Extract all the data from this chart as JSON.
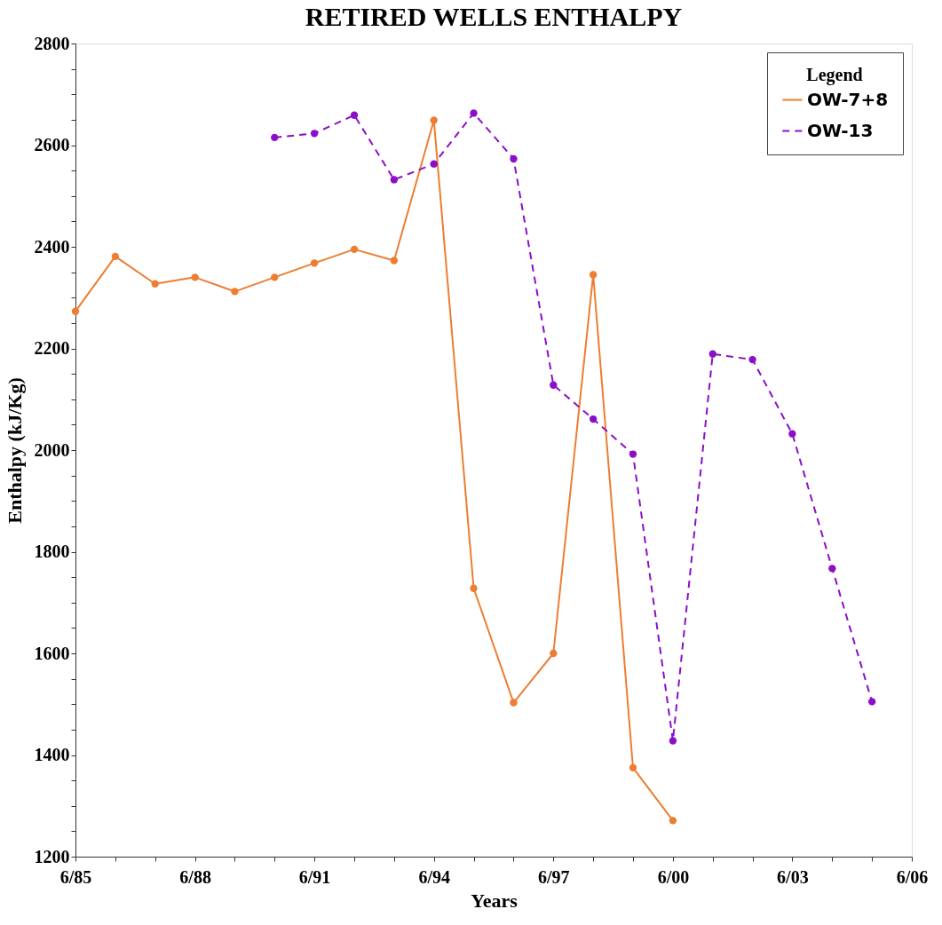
{
  "chart_data": {
    "type": "line",
    "title": "RETIRED WELLS ENTHALPY",
    "xlabel": "Years",
    "ylabel": "Enthalpy (kJ/Kg)",
    "legend_title": "Legend",
    "legend": "top right",
    "grid": false,
    "marker": "circle",
    "xlim": [
      "1985-06",
      "2006-06"
    ],
    "xticks": [
      {
        "value": "1985-06",
        "label": "6/85"
      },
      {
        "value": "1986-06",
        "label": null
      },
      {
        "value": "1987-06",
        "label": null
      },
      {
        "value": "1988-06",
        "label": "6/88"
      },
      {
        "value": "1989-06",
        "label": null
      },
      {
        "value": "1990-06",
        "label": null
      },
      {
        "value": "1991-06",
        "label": "6/91"
      },
      {
        "value": "1992-06",
        "label": null
      },
      {
        "value": "1993-06",
        "label": null
      },
      {
        "value": "1994-06",
        "label": "6/94"
      },
      {
        "value": "1995-06",
        "label": null
      },
      {
        "value": "1996-06",
        "label": null
      },
      {
        "value": "1997-06",
        "label": "6/97"
      },
      {
        "value": "1998-06",
        "label": null
      },
      {
        "value": "1999-06",
        "label": null
      },
      {
        "value": "2000-06",
        "label": "6/00"
      },
      {
        "value": "2001-06",
        "label": null
      },
      {
        "value": "2002-06",
        "label": null
      },
      {
        "value": "2003-06",
        "label": "6/03"
      },
      {
        "value": "2004-06",
        "label": null
      },
      {
        "value": "2005-06",
        "label": null
      },
      {
        "value": "2006-06",
        "label": "6/06"
      }
    ],
    "ylim": [
      1200,
      2800
    ],
    "yticks": [
      1200,
      {
        "value": 1250,
        "label": null
      },
      {
        "value": 1300,
        "label": null
      },
      {
        "value": 1350,
        "label": null
      },
      1400,
      {
        "value": 1450,
        "label": null
      },
      {
        "value": 1500,
        "label": null
      },
      {
        "value": 1550,
        "label": null
      },
      1600,
      {
        "value": 1650,
        "label": null
      },
      {
        "value": 1700,
        "label": null
      },
      {
        "value": 1750,
        "label": null
      },
      1800,
      {
        "value": 1850,
        "label": null
      },
      {
        "value": 1900,
        "label": null
      },
      {
        "value": 1950,
        "label": null
      },
      2000,
      {
        "value": 2050,
        "label": null
      },
      {
        "value": 2100,
        "label": null
      },
      {
        "value": 2150,
        "label": null
      },
      2200,
      {
        "value": 2250,
        "label": null
      },
      {
        "value": 2300,
        "label": null
      },
      {
        "value": 2350,
        "label": null
      },
      2400,
      {
        "value": 2450,
        "label": null
      },
      {
        "value": 2500,
        "label": null
      },
      {
        "value": 2550,
        "label": null
      },
      2600,
      {
        "value": 2650,
        "label": null
      },
      {
        "value": 2700,
        "label": null
      },
      {
        "value": 2750,
        "label": null
      },
      2800
    ],
    "series": [
      {
        "name": "OW-7+8",
        "color": "#ed7d31",
        "line_style": "solid",
        "x": [
          "1985-06",
          "1986-06",
          "1987-06",
          "1988-06",
          "1989-06",
          "1990-06",
          "1991-06",
          "1992-06",
          "1993-06",
          "1994-06",
          "1995-06",
          "1996-06",
          "1997-06",
          "1998-06",
          "1999-06",
          "2000-06"
        ],
        "values": [
          2273,
          2381,
          2327,
          2340,
          2312,
          2340,
          2368,
          2395,
          2373,
          2649,
          1728,
          1503,
          1600,
          2345,
          1375,
          1271
        ]
      },
      {
        "name": "OW-13",
        "color": "#8b0fc7",
        "line_style": "dashed",
        "x": [
          "1990-06",
          "1991-06",
          "1992-06",
          "1993-06",
          "1994-06",
          "1995-06",
          "1996-06",
          "1997-06",
          "1998-06",
          "1999-06",
          "2000-06",
          "2001-06",
          "2002-06",
          "2003-06",
          "2004-06",
          "2005-06"
        ],
        "values": [
          2615,
          2623,
          2659,
          2532,
          2563,
          2663,
          2573,
          2128,
          2061,
          1992,
          1428,
          2189,
          2178,
          2032,
          1767,
          1505
        ]
      }
    ]
  }
}
